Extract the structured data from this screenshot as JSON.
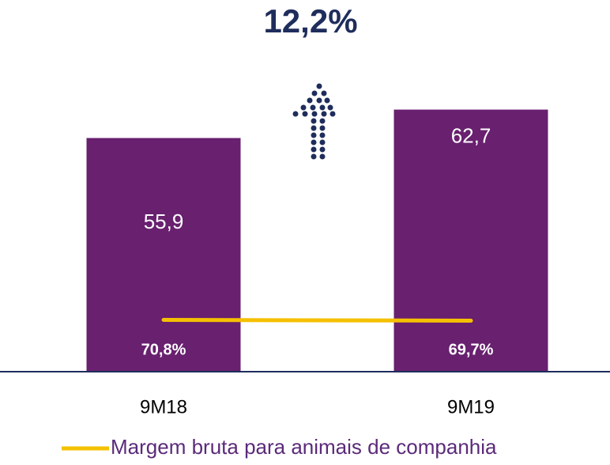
{
  "chart_data": {
    "type": "bar",
    "annotation": "12,2%",
    "categories": [
      "9M18",
      "9M19"
    ],
    "ylim": [
      0,
      70
    ],
    "y2lim": [
      0,
      400
    ],
    "series": [
      {
        "name": null,
        "type": "bar",
        "color": "#68206f",
        "values": [
          55.9,
          62.7
        ],
        "value_labels": [
          "55,9",
          "62,7"
        ]
      },
      {
        "name": "Margem bruta para animais de companhia",
        "type": "line",
        "axis": "y2",
        "color": "#f5c000",
        "values": [
          70.8,
          69.7
        ],
        "value_labels": [
          "70,8%",
          "69,7%"
        ]
      }
    ]
  }
}
